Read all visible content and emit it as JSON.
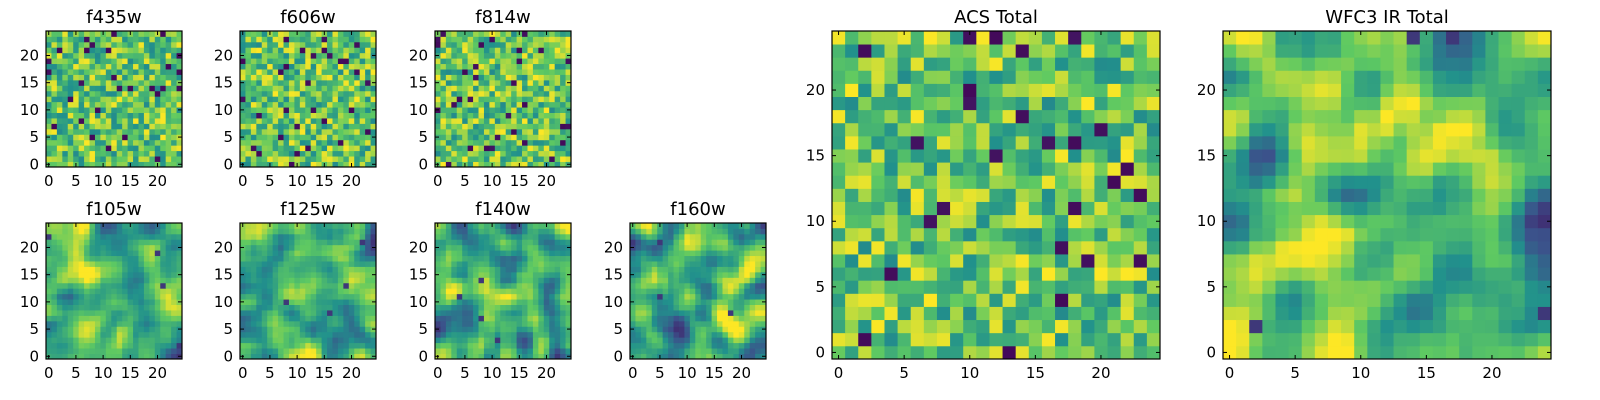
{
  "chart_data": {
    "type": "heatmap",
    "colormap": "viridis",
    "grid_size": 25,
    "panels": [
      {
        "key": "f435w",
        "title": "f435w",
        "pattern": "noise",
        "seed": 11,
        "xticks": [
          0,
          5,
          10,
          15,
          20
        ],
        "yticks": [
          0,
          5,
          10,
          15,
          20
        ],
        "xlim": [
          0,
          24
        ],
        "ylim": [
          0,
          24
        ]
      },
      {
        "key": "f606w",
        "title": "f606w",
        "pattern": "noise",
        "seed": 23,
        "xticks": [
          0,
          5,
          10,
          15,
          20
        ],
        "yticks": [
          0,
          5,
          10,
          15,
          20
        ],
        "xlim": [
          0,
          24
        ],
        "ylim": [
          0,
          24
        ]
      },
      {
        "key": "f814w",
        "title": "f814w",
        "pattern": "noise",
        "seed": 37,
        "xticks": [
          0,
          5,
          10,
          15,
          20
        ],
        "yticks": [
          0,
          5,
          10,
          15,
          20
        ],
        "xlim": [
          0,
          24
        ],
        "ylim": [
          0,
          24
        ]
      },
      {
        "key": "f105w",
        "title": "f105w",
        "pattern": "smooth",
        "seed": 41,
        "xticks": [
          0,
          5,
          10,
          15,
          20
        ],
        "yticks": [
          0,
          5,
          10,
          15,
          20
        ],
        "xlim": [
          0,
          24
        ],
        "ylim": [
          0,
          24
        ]
      },
      {
        "key": "f125w",
        "title": "f125w",
        "pattern": "smooth",
        "seed": 53,
        "xticks": [
          0,
          5,
          10,
          15,
          20
        ],
        "yticks": [
          0,
          5,
          10,
          15,
          20
        ],
        "xlim": [
          0,
          24
        ],
        "ylim": [
          0,
          24
        ]
      },
      {
        "key": "f140w",
        "title": "f140w",
        "pattern": "smooth",
        "seed": 67,
        "xticks": [
          0,
          5,
          10,
          15,
          20
        ],
        "yticks": [
          0,
          5,
          10,
          15,
          20
        ],
        "xlim": [
          0,
          24
        ],
        "ylim": [
          0,
          24
        ]
      },
      {
        "key": "f160w",
        "title": "f160w",
        "pattern": "smooth",
        "seed": 79,
        "xticks": [
          0,
          5,
          10,
          15,
          20
        ],
        "yticks": [
          0,
          5,
          10,
          15,
          20
        ],
        "xlim": [
          0,
          24
        ],
        "ylim": [
          0,
          24
        ]
      },
      {
        "key": "acs_total",
        "title": "ACS Total",
        "pattern": "noise",
        "seed": 97,
        "xticks": [
          0,
          5,
          10,
          15,
          20
        ],
        "yticks": [
          0,
          5,
          10,
          15,
          20
        ],
        "xlim": [
          0,
          24
        ],
        "ylim": [
          0,
          24
        ]
      },
      {
        "key": "wfc3_ir_total",
        "title": "WFC3 IR Total",
        "pattern": "smooth",
        "seed": 113,
        "xticks": [
          0,
          5,
          10,
          15,
          20
        ],
        "yticks": [
          0,
          5,
          10,
          15,
          20
        ],
        "xlim": [
          0,
          24
        ],
        "ylim": [
          0,
          24
        ]
      }
    ]
  },
  "colors": {
    "frame": "#000000",
    "background": "#ffffff",
    "viridis_stops": [
      "#440154",
      "#3b528b",
      "#21918c",
      "#5ec962",
      "#fde725"
    ]
  }
}
